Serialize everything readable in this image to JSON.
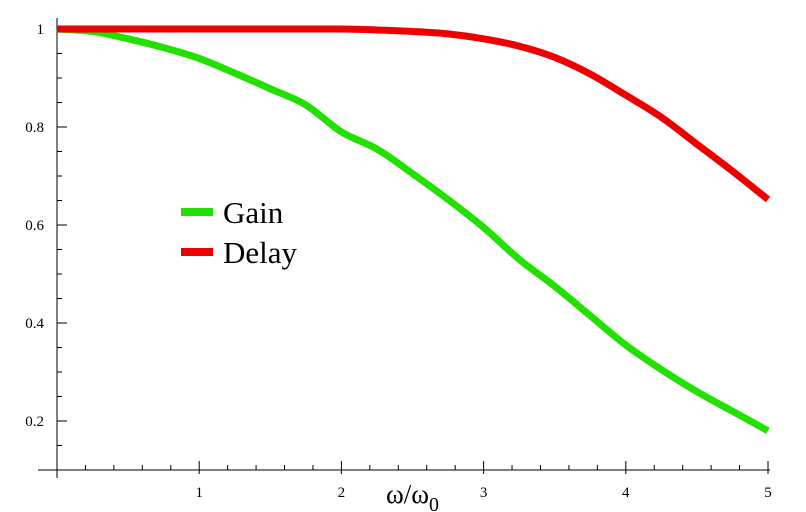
{
  "chart_data": {
    "type": "line",
    "title": "",
    "xlabel": "ω/ω",
    "xlabel_subscript": "0",
    "ylabel": "",
    "xlim": [
      0,
      5
    ],
    "ylim": [
      0.1,
      1.0
    ],
    "x_ticks": [
      1,
      2,
      3,
      4,
      5
    ],
    "y_ticks": [
      0.2,
      0.4,
      0.6,
      0.8,
      1
    ],
    "x_tick_labels": [
      "1",
      "2",
      "3",
      "4",
      "5"
    ],
    "y_tick_labels": [
      "0.2",
      "0.4",
      "0.6",
      "0.8",
      "1"
    ],
    "grid": false,
    "legend_position": "center-left",
    "series": [
      {
        "name": "Gain",
        "color": "#22e000",
        "x": [
          0,
          0.25,
          0.5,
          0.75,
          1,
          1.25,
          1.5,
          1.75,
          2,
          2.25,
          2.5,
          2.75,
          3,
          3.25,
          3.5,
          3.75,
          4,
          4.25,
          4.5,
          4.75,
          5
        ],
        "values": [
          1.0,
          0.995,
          0.98,
          0.962,
          0.94,
          0.91,
          0.878,
          0.845,
          0.79,
          0.755,
          0.705,
          0.652,
          0.595,
          0.53,
          0.475,
          0.415,
          0.355,
          0.305,
          0.26,
          0.22,
          0.18
        ]
      },
      {
        "name": "Delay",
        "color": "#ee0000",
        "x": [
          0,
          0.5,
          1,
          1.5,
          2,
          2.25,
          2.5,
          2.75,
          3,
          3.25,
          3.5,
          3.75,
          4,
          4.25,
          4.5,
          4.75,
          5
        ],
        "values": [
          1.0,
          1.0,
          1.0,
          1.0,
          1.0,
          0.998,
          0.995,
          0.99,
          0.98,
          0.965,
          0.942,
          0.908,
          0.865,
          0.82,
          0.765,
          0.71,
          0.652
        ]
      }
    ]
  }
}
